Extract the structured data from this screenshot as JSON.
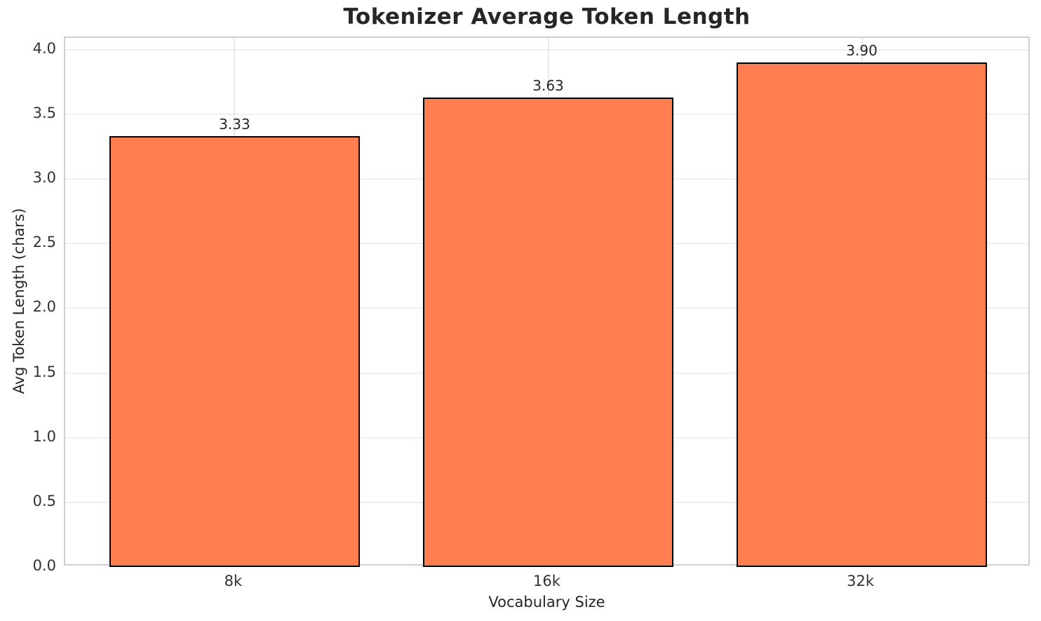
{
  "title": "Tokenizer Average Token Length",
  "chart_data": {
    "type": "bar",
    "title": "Tokenizer Average Token Length",
    "xlabel": "Vocabulary Size",
    "ylabel": "Avg Token Length (chars)",
    "categories": [
      "8k",
      "16k",
      "32k"
    ],
    "values": [
      3.33,
      3.63,
      3.9
    ],
    "value_labels": [
      "3.33",
      "3.63",
      "3.90"
    ],
    "yticks": [
      0.0,
      0.5,
      1.0,
      1.5,
      2.0,
      2.5,
      3.0,
      3.5,
      4.0
    ],
    "ytick_labels": [
      "0.0",
      "0.5",
      "1.0",
      "1.5",
      "2.0",
      "2.5",
      "3.0",
      "3.5",
      "4.0"
    ],
    "ylim": [
      0,
      4.092
    ],
    "grid": true,
    "legend": false,
    "bar_color": "#FF7F50",
    "bar_edge_color": "#000000"
  },
  "colors": {
    "grid_h": "#efefef",
    "grid_v": "#e9e9e9",
    "spine": "#cfcfcf",
    "text": "#262626",
    "tick_text": "#333333",
    "background": "#ffffff"
  }
}
